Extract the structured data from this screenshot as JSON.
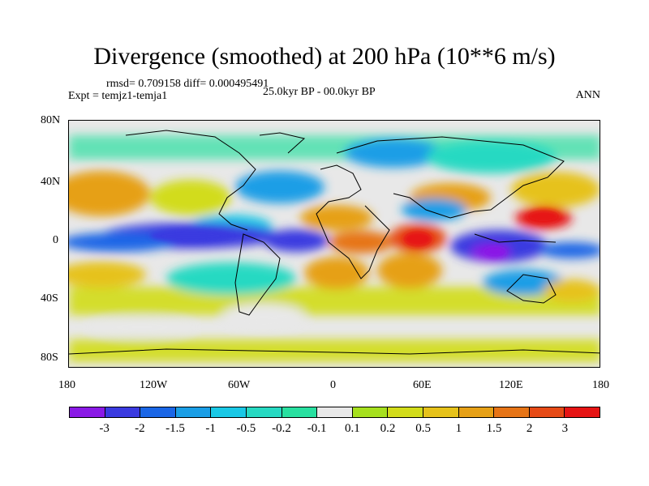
{
  "header": {
    "title": "Divergence (smoothed) at 200 hPa (10**6 m/s)",
    "stats": "rmsd= 0.709158 diff= 0.000495491",
    "experiment": "Expt = temjz1-temja1",
    "period": "25.0kyr BP - 00.0kyr BP",
    "season": "ANN"
  },
  "map": {
    "lat_ticks": [
      "80N",
      "40N",
      "0",
      "40S",
      "80S"
    ],
    "lon_ticks": [
      "180",
      "120W",
      "60W",
      "0",
      "60E",
      "120E",
      "180"
    ]
  },
  "colorbar": {
    "colors": [
      "#8a19e6",
      "#3a3ae0",
      "#1a66e6",
      "#1a9ee6",
      "#19c8e6",
      "#26d9c2",
      "#28e0a0",
      "#e8e8e8",
      "#a6e01e",
      "#d2dc1a",
      "#e6c21a",
      "#e6a016",
      "#e67416",
      "#e64a16",
      "#e61414"
    ],
    "labels": [
      "-3",
      "-2",
      "-1.5",
      "-1",
      "-0.5",
      "-0.2",
      "-0.1",
      "0.1",
      "0.2",
      "0.5",
      "1",
      "1.5",
      "2",
      "3"
    ]
  }
}
